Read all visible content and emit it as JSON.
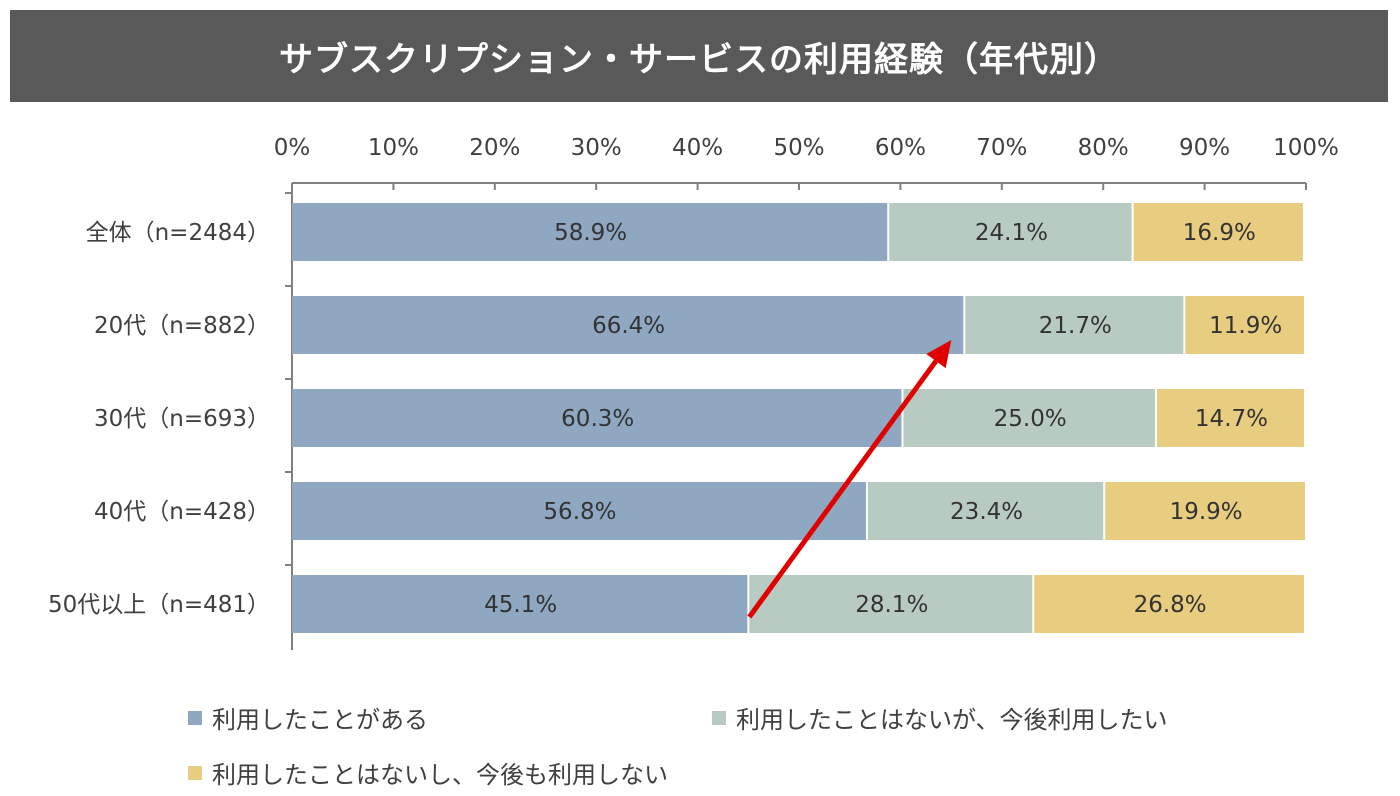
{
  "title": "サブスクリプション・サービスの利用経験（年代別）",
  "colors": {
    "title_bg": "#595959",
    "series": [
      "#8fa7c1",
      "#b8cbc3",
      "#e8cc7f"
    ],
    "axis": "#808080",
    "arrow": "#e00000"
  },
  "chart_data": {
    "type": "bar",
    "orientation": "horizontal",
    "stacked": true,
    "title": "サブスクリプション・サービスの利用経験（年代別）",
    "categories": [
      "全体（n=2484）",
      "20代（n=882）",
      "30代（n=693）",
      "40代（n=428）",
      "50代以上（n=481）"
    ],
    "series": [
      {
        "name": "利用したことがある",
        "values": [
          58.9,
          66.4,
          60.3,
          56.8,
          45.1
        ]
      },
      {
        "name": "利用したことはないが、今後利用したい",
        "values": [
          24.1,
          21.7,
          25.0,
          23.4,
          28.1
        ]
      },
      {
        "name": "利用したことはないし、今後も利用しない",
        "values": [
          16.9,
          11.9,
          14.7,
          19.9,
          26.8
        ]
      }
    ],
    "xlim": [
      0,
      100
    ],
    "xticks": [
      "0%",
      "10%",
      "20%",
      "30%",
      "40%",
      "50%",
      "60%",
      "70%",
      "80%",
      "90%",
      "100%"
    ],
    "legend_position": "bottom",
    "annotation": "red arrow from 50代以上 to 20代 indicating increase"
  },
  "legend": [
    {
      "label": "利用したことがある"
    },
    {
      "label": "利用したことはないが、今後利用したい"
    },
    {
      "label": "利用したことはないし、今後も利用しない"
    }
  ]
}
